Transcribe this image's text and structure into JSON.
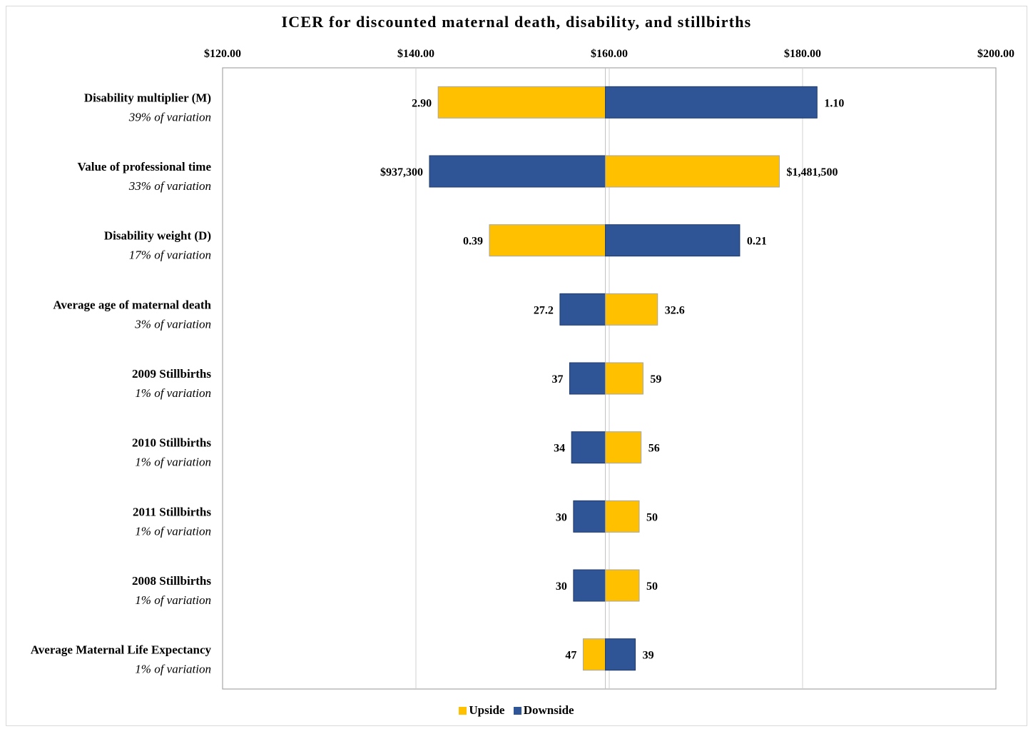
{
  "chart_data": {
    "type": "bar",
    "subtype": "tornado",
    "title": "ICER for discounted maternal death, disability,  and stillbirths",
    "base_value": 159.6,
    "xlim": [
      120,
      200
    ],
    "x_ticks": [
      "$120.00",
      "$140.00",
      "$160.00",
      "$180.00",
      "$200.00"
    ],
    "x_tick_values": [
      120,
      140,
      160,
      180,
      200
    ],
    "axis_position": "top",
    "grid": true,
    "legend_position": "bottom",
    "colors": {
      "upside": "#FFC000",
      "downside": "#2F5597"
    },
    "legend": [
      {
        "key": "upside",
        "label": "Upside"
      },
      {
        "key": "downside",
        "label": "Downside"
      }
    ],
    "rows": [
      {
        "category": "Disability multiplier (M)",
        "variation": "39% of variation",
        "left": {
          "series": "upside",
          "value": 142.3,
          "label": "2.90"
        },
        "right": {
          "series": "downside",
          "value": 181.5,
          "label": "1.10"
        }
      },
      {
        "category": "Value of professional time",
        "variation": "33% of variation",
        "left": {
          "series": "downside",
          "value": 141.4,
          "label": "$937,300"
        },
        "right": {
          "series": "upside",
          "value": 177.6,
          "label": "$1,481,500"
        }
      },
      {
        "category": "Disability weight (D)",
        "variation": "17% of variation",
        "left": {
          "series": "upside",
          "value": 147.6,
          "label": "0.39"
        },
        "right": {
          "series": "downside",
          "value": 173.5,
          "label": "0.21"
        }
      },
      {
        "category": "Average age of maternal death",
        "variation": "3% of variation",
        "left": {
          "series": "downside",
          "value": 154.9,
          "label": "27.2"
        },
        "right": {
          "series": "upside",
          "value": 165.0,
          "label": "32.6"
        }
      },
      {
        "category": "2009 Stillbirths",
        "variation": "1% of variation",
        "left": {
          "series": "downside",
          "value": 155.9,
          "label": "37"
        },
        "right": {
          "series": "upside",
          "value": 163.5,
          "label": "59"
        }
      },
      {
        "category": "2010 Stillbirths",
        "variation": "1% of variation",
        "left": {
          "series": "downside",
          "value": 156.1,
          "label": "34"
        },
        "right": {
          "series": "upside",
          "value": 163.3,
          "label": "56"
        }
      },
      {
        "category": "2011 Stillbirths",
        "variation": "1% of variation",
        "left": {
          "series": "downside",
          "value": 156.3,
          "label": "30"
        },
        "right": {
          "series": "upside",
          "value": 163.1,
          "label": "50"
        }
      },
      {
        "category": "2008 Stillbirths",
        "variation": "1% of variation",
        "left": {
          "series": "downside",
          "value": 156.3,
          "label": "30"
        },
        "right": {
          "series": "upside",
          "value": 163.1,
          "label": "50"
        }
      },
      {
        "category": "Average Maternal Life Expectancy",
        "variation": "1% of variation",
        "left": {
          "series": "upside",
          "value": 157.3,
          "label": "47"
        },
        "right": {
          "series": "downside",
          "value": 162.7,
          "label": "39"
        }
      }
    ]
  }
}
